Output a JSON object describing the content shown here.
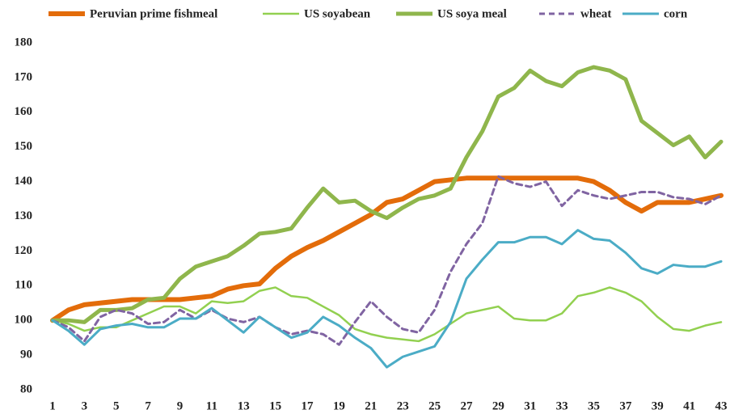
{
  "chart_data": {
    "type": "line",
    "x": [
      1,
      2,
      3,
      4,
      5,
      6,
      7,
      8,
      9,
      10,
      11,
      12,
      13,
      14,
      15,
      16,
      17,
      18,
      19,
      20,
      21,
      22,
      23,
      24,
      25,
      26,
      27,
      28,
      29,
      30,
      31,
      32,
      33,
      34,
      35,
      36,
      37,
      38,
      39,
      40,
      41,
      42,
      43
    ],
    "xlim": [
      1,
      43
    ],
    "xticks": [
      1,
      3,
      5,
      7,
      9,
      11,
      13,
      15,
      17,
      19,
      21,
      23,
      25,
      27,
      29,
      31,
      33,
      35,
      37,
      39,
      41,
      43
    ],
    "ylim": [
      80,
      180
    ],
    "yticks": [
      80,
      90,
      100,
      110,
      120,
      130,
      140,
      150,
      160,
      170,
      180
    ],
    "grid": false,
    "legend": "top",
    "series": [
      {
        "name": "Peruvian prime fishmeal",
        "color": "#e36c0a",
        "values": [
          100,
          103,
          104.5,
          105,
          105.5,
          106,
          106,
          106,
          106,
          106.5,
          107,
          109,
          110,
          110.5,
          115,
          118.5,
          121,
          123,
          125.5,
          128,
          130.5,
          134,
          135,
          137.5,
          140,
          140.5,
          141,
          141,
          141,
          141,
          141,
          141,
          141,
          141,
          140,
          137.5,
          134,
          131.5,
          134,
          134,
          134,
          135,
          136
        ]
      },
      {
        "name": "US soyabean",
        "color": "#92d050",
        "values": [
          100,
          99,
          97,
          98,
          98,
          100,
          102,
          104,
          104,
          102,
          105.5,
          105,
          105.5,
          108.5,
          109.5,
          107,
          106.5,
          104,
          101.5,
          97.5,
          96,
          95,
          94.5,
          94,
          96,
          99,
          102,
          103,
          104,
          100.5,
          100,
          100,
          102,
          107,
          108,
          109.5,
          108,
          105.5,
          101,
          97.5,
          97,
          98.5,
          99.5
        ]
      },
      {
        "name": "US soya meal",
        "color": "#8fb64c",
        "values": [
          100,
          100,
          99.5,
          103,
          103,
          103.5,
          106,
          106.5,
          112,
          115.5,
          117,
          118.5,
          121.5,
          125,
          125.5,
          126.5,
          132.5,
          138,
          134,
          134.5,
          131.5,
          129.5,
          132.5,
          135,
          136,
          138,
          147,
          154.5,
          164.5,
          167,
          172,
          169,
          167.5,
          171.5,
          173,
          172,
          169.5,
          157.5,
          154,
          150.5,
          153,
          147,
          151.5
        ]
      },
      {
        "name": "wheat",
        "color": "#8064a2",
        "dashed": true,
        "values": [
          100,
          98,
          94,
          101,
          103,
          102,
          99,
          99.5,
          103,
          100.5,
          103,
          100.5,
          99.5,
          101,
          98,
          96,
          97,
          96,
          93,
          99.5,
          105.5,
          101,
          97.5,
          96.5,
          103,
          114,
          122,
          128,
          141.5,
          139.5,
          138.5,
          140,
          133,
          137.5,
          136,
          135,
          136,
          137,
          137,
          135.5,
          135,
          133.5,
          136
        ]
      },
      {
        "name": "corn",
        "color": "#4bacc6",
        "values": [
          100,
          97,
          93,
          97.5,
          98.5,
          99,
          98,
          98,
          100.5,
          100.5,
          103.5,
          100,
          96.5,
          101,
          98,
          95,
          96.5,
          101,
          98.5,
          95,
          92,
          86.5,
          89.5,
          91,
          92.5,
          99.5,
          112,
          117.5,
          122.5,
          122.5,
          124,
          124,
          122,
          126,
          123.5,
          123,
          119.5,
          115,
          113.5,
          116,
          115.5,
          115.5,
          117
        ]
      }
    ]
  }
}
